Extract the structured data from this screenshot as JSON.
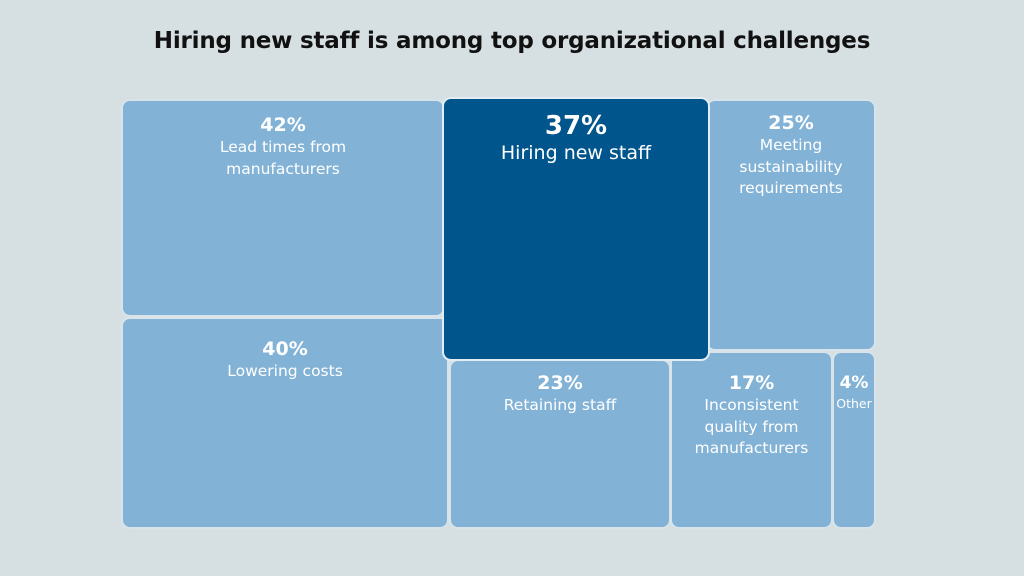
{
  "chart_data": {
    "type": "treemap",
    "title": "Hiring new staff is among top organizational challenges",
    "items": [
      {
        "label": "Lead times from manufacturers",
        "value": 42,
        "value_label": "42%",
        "highlight": false
      },
      {
        "label": "Lowering costs",
        "value": 40,
        "value_label": "40%",
        "highlight": false
      },
      {
        "label": "Hiring new staff",
        "value": 37,
        "value_label": "37%",
        "highlight": true
      },
      {
        "label": "Meeting sustainability requirements",
        "value": 25,
        "value_label": "25%",
        "highlight": false
      },
      {
        "label": "Retaining staff",
        "value": 23,
        "value_label": "23%",
        "highlight": false
      },
      {
        "label": "Inconsistent quality from manufacturers",
        "value": 17,
        "value_label": "17%",
        "highlight": false
      },
      {
        "label": "Other",
        "value": 4,
        "value_label": "4%",
        "highlight": false
      }
    ],
    "colors": {
      "highlight": "#00558c",
      "default": "#82b2d6",
      "background": "#d6e0e3"
    }
  }
}
